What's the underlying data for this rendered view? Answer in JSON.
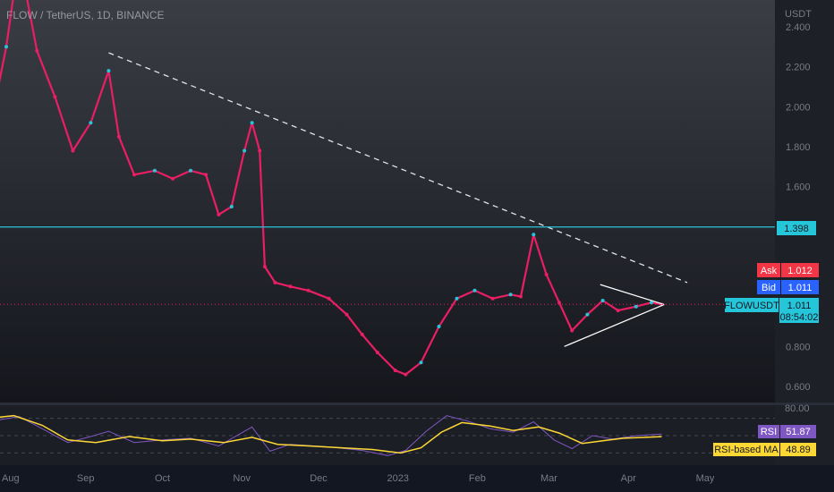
{
  "header": {
    "symbol": "FLOW / TetherUS, 1D, BINANCE",
    "axis_unit": "USDT"
  },
  "colors": {
    "background": "#131722",
    "up": "#26c6da",
    "down": "#e91e63",
    "rsi_line": "#7e57c2",
    "rsi_ma": "#fdd835",
    "support_line": "#26c6da",
    "ask": "#f23645",
    "bid": "#2962ff"
  },
  "price_levels": [
    {
      "name": "resistance-line",
      "value": 1.398,
      "label": "1.398"
    }
  ],
  "tags": {
    "ask": {
      "label": "Ask",
      "value": "1.012"
    },
    "bid": {
      "label": "Bid",
      "value": "1.011"
    },
    "last": {
      "label": "FLOWUSDT",
      "value": "1.011",
      "countdown": "08:54:02"
    },
    "rsi": {
      "label": "RSI",
      "value": "51.87"
    },
    "rsi_ma": {
      "label": "RSI-based MA",
      "value": "48.89"
    },
    "rsi_top": "80.00"
  },
  "chart_data": [
    {
      "type": "line",
      "title": "FLOW / TetherUS, 1D, BINANCE",
      "yunit": "USDT",
      "ylim": [
        0.52,
        2.48
      ],
      "yticks": [
        2.4,
        2.2,
        2.0,
        1.8,
        1.6,
        0.8,
        0.6
      ],
      "ytick_labels": [
        "2.400",
        "2.200",
        "2.000",
        "1.800",
        "1.600",
        "0.800",
        "0.600"
      ],
      "xticks": [
        {
          "label": "Aug",
          "date": "2022-08-01"
        },
        {
          "label": "Sep",
          "date": "2022-09-01"
        },
        {
          "label": "Oct",
          "date": "2022-10-01"
        },
        {
          "label": "Nov",
          "date": "2022-11-01"
        },
        {
          "label": "Dec",
          "date": "2022-12-01"
        },
        {
          "label": "2023",
          "date": "2023-01-01"
        },
        {
          "label": "Feb",
          "date": "2023-02-01"
        },
        {
          "label": "Mar",
          "date": "2023-03-01"
        },
        {
          "label": "Apr",
          "date": "2023-04-01"
        },
        {
          "label": "May",
          "date": "2023-05-01"
        }
      ],
      "series": [
        {
          "points": [
            [
              "2022-07-25",
              1.85
            ],
            [
              "2022-08-01",
              2.3
            ],
            [
              "2022-08-06",
              2.75
            ],
            [
              "2022-08-13",
              2.28
            ],
            [
              "2022-08-20",
              2.05
            ],
            [
              "2022-08-27",
              1.78
            ],
            [
              "2022-09-03",
              1.92
            ],
            [
              "2022-09-10",
              2.18
            ],
            [
              "2022-09-14",
              1.85
            ],
            [
              "2022-09-20",
              1.66
            ],
            [
              "2022-09-28",
              1.68
            ],
            [
              "2022-10-05",
              1.64
            ],
            [
              "2022-10-12",
              1.68
            ],
            [
              "2022-10-18",
              1.66
            ],
            [
              "2022-10-23",
              1.46
            ],
            [
              "2022-10-28",
              1.5
            ],
            [
              "2022-11-02",
              1.78
            ],
            [
              "2022-11-05",
              1.92
            ],
            [
              "2022-11-08",
              1.78
            ],
            [
              "2022-11-10",
              1.2
            ],
            [
              "2022-11-14",
              1.12
            ],
            [
              "2022-11-20",
              1.1
            ],
            [
              "2022-11-27",
              1.08
            ],
            [
              "2022-12-05",
              1.04
            ],
            [
              "2022-12-12",
              0.96
            ],
            [
              "2022-12-18",
              0.86
            ],
            [
              "2022-12-24",
              0.77
            ],
            [
              "2022-12-31",
              0.68
            ],
            [
              "2023-01-04",
              0.66
            ],
            [
              "2023-01-10",
              0.72
            ],
            [
              "2023-01-17",
              0.9
            ],
            [
              "2023-01-24",
              1.04
            ],
            [
              "2023-01-31",
              1.08
            ],
            [
              "2023-02-07",
              1.04
            ],
            [
              "2023-02-14",
              1.06
            ],
            [
              "2023-02-18",
              1.05
            ],
            [
              "2023-02-23",
              1.36
            ],
            [
              "2023-02-28",
              1.16
            ],
            [
              "2023-03-05",
              1.02
            ],
            [
              "2023-03-10",
              0.88
            ],
            [
              "2023-03-16",
              0.96
            ],
            [
              "2023-03-22",
              1.03
            ],
            [
              "2023-03-28",
              0.98
            ],
            [
              "2023-04-04",
              1.0
            ],
            [
              "2023-04-10",
              1.02
            ],
            [
              "2023-04-14",
              1.011
            ]
          ]
        }
      ],
      "annotations": [
        {
          "type": "trendline",
          "style": "dashed",
          "from": [
            "2022-09-10",
            2.27
          ],
          "to": [
            "2023-04-24",
            1.12
          ]
        },
        {
          "type": "hline",
          "value": 1.398,
          "label": "1.398"
        },
        {
          "type": "triangle-upper",
          "from": [
            "2023-03-21",
            1.11
          ],
          "to": [
            "2023-04-15",
            1.01
          ]
        },
        {
          "type": "triangle-lower",
          "from": [
            "2023-03-07",
            0.8
          ],
          "to": [
            "2023-04-15",
            1.01
          ]
        },
        {
          "type": "last-price-line",
          "value": 1.011
        }
      ]
    },
    {
      "type": "line",
      "title": "RSI",
      "ylim": [
        18,
        83
      ],
      "yticks": [
        80
      ],
      "ytick_labels": [
        "80.00"
      ],
      "bands": [
        70,
        50,
        30
      ],
      "series": [
        {
          "name": "RSI",
          "points": [
            [
              "2022-07-25",
              66
            ],
            [
              "2022-08-06",
              72
            ],
            [
              "2022-08-15",
              58
            ],
            [
              "2022-08-25",
              42
            ],
            [
              "2022-09-03",
              49
            ],
            [
              "2022-09-10",
              55
            ],
            [
              "2022-09-20",
              42
            ],
            [
              "2022-10-01",
              45
            ],
            [
              "2022-10-12",
              47
            ],
            [
              "2022-10-23",
              38
            ],
            [
              "2022-11-05",
              60
            ],
            [
              "2022-11-12",
              32
            ],
            [
              "2022-11-20",
              40
            ],
            [
              "2022-12-05",
              37
            ],
            [
              "2022-12-18",
              33
            ],
            [
              "2022-12-28",
              27
            ],
            [
              "2023-01-04",
              33
            ],
            [
              "2023-01-12",
              55
            ],
            [
              "2023-01-20",
              73
            ],
            [
              "2023-01-28",
              67
            ],
            [
              "2023-02-06",
              58
            ],
            [
              "2023-02-15",
              54
            ],
            [
              "2023-02-23",
              66
            ],
            [
              "2023-03-03",
              45
            ],
            [
              "2023-03-10",
              35
            ],
            [
              "2023-03-18",
              50
            ],
            [
              "2023-03-26",
              46
            ],
            [
              "2023-04-04",
              50
            ],
            [
              "2023-04-14",
              51.87
            ]
          ]
        },
        {
          "name": "RSI-based MA",
          "points": [
            [
              "2022-07-25",
              70
            ],
            [
              "2022-08-04",
              73
            ],
            [
              "2022-08-15",
              62
            ],
            [
              "2022-08-25",
              45
            ],
            [
              "2022-09-05",
              42
            ],
            [
              "2022-09-18",
              49
            ],
            [
              "2022-10-01",
              44
            ],
            [
              "2022-10-12",
              46
            ],
            [
              "2022-10-25",
              42
            ],
            [
              "2022-11-05",
              48
            ],
            [
              "2022-11-15",
              40
            ],
            [
              "2022-11-28",
              38
            ],
            [
              "2022-12-10",
              36
            ],
            [
              "2022-12-22",
              34
            ],
            [
              "2023-01-02",
              30
            ],
            [
              "2023-01-10",
              36
            ],
            [
              "2023-01-18",
              54
            ],
            [
              "2023-01-26",
              65
            ],
            [
              "2023-02-06",
              61
            ],
            [
              "2023-02-15",
              56
            ],
            [
              "2023-02-25",
              60
            ],
            [
              "2023-03-05",
              53
            ],
            [
              "2023-03-14",
              41
            ],
            [
              "2023-03-22",
              44
            ],
            [
              "2023-03-30",
              47
            ],
            [
              "2023-04-14",
              48.89
            ]
          ]
        }
      ]
    }
  ]
}
